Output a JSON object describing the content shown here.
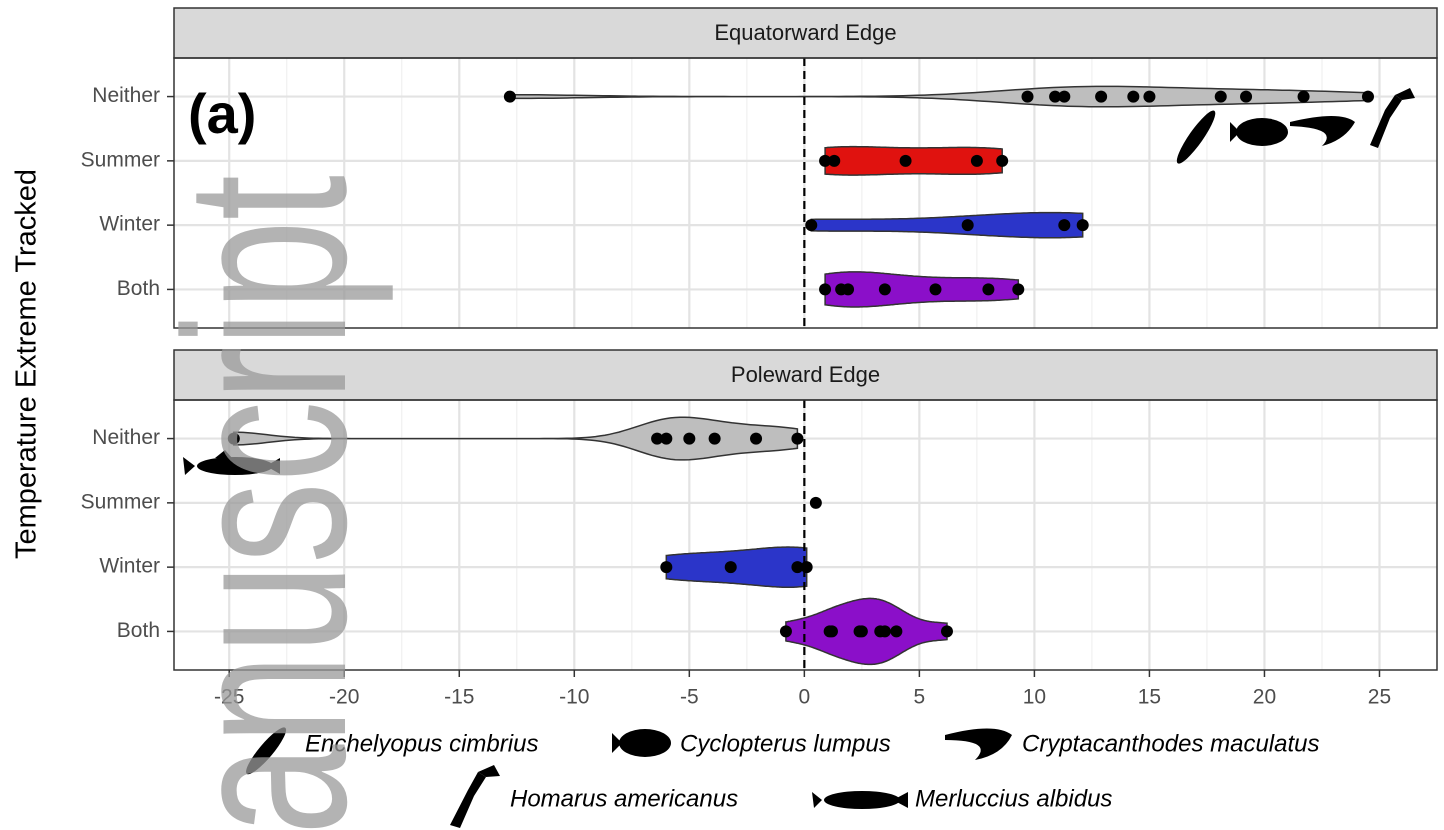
{
  "watermark": "anuscript",
  "panel_label": "(a)",
  "y_label": "Temperature Extreme Tracked",
  "legend": [
    "Enchelyopus cimbrius",
    "Cyclopterus lumpus",
    "Cryptacanthodes maculatus",
    "Homarus americanus",
    "Merluccius albidus"
  ],
  "chart_data": [
    {
      "type": "violin",
      "title": "Equatorward Edge",
      "categories": [
        "Neither",
        "Summer",
        "Winter",
        "Both"
      ],
      "colors": [
        "#bebebe",
        "#e0120f",
        "#2b35c9",
        "#8b0fc9"
      ],
      "values": [
        [
          -12.8,
          9.7,
          10.9,
          11.3,
          12.9,
          14.3,
          15.0,
          18.1,
          19.2,
          21.7,
          24.5
        ],
        [
          0.9,
          1.3,
          4.4,
          7.5,
          8.6
        ],
        [
          0.3,
          7.1,
          11.3,
          12.1
        ],
        [
          0.9,
          1.6,
          1.9,
          3.5,
          5.7,
          8.0,
          9.3
        ]
      ],
      "xlim": [
        -27.4,
        27.5
      ],
      "xticks": [
        -25,
        -20,
        -15,
        -10,
        -5,
        0,
        5,
        10,
        15,
        20,
        25
      ],
      "vline": 0,
      "grid": true
    },
    {
      "type": "violin",
      "title": "Poleward Edge",
      "categories": [
        "Neither",
        "Summer",
        "Winter",
        "Both"
      ],
      "colors": [
        "#bebebe",
        "#e0120f",
        "#2b35c9",
        "#8b0fc9"
      ],
      "values": [
        [
          -24.8,
          -6.4,
          -6.0,
          -5.0,
          -3.9,
          -2.1,
          -0.3
        ],
        [
          0.5
        ],
        [
          -6.0,
          -3.2,
          -0.3,
          0.1
        ],
        [
          -0.8,
          1.1,
          1.2,
          2.4,
          2.5,
          3.3,
          3.5,
          4.0,
          6.2
        ]
      ],
      "xlim": [
        -27.4,
        27.5
      ],
      "xticks": [
        -25,
        -20,
        -15,
        -10,
        -5,
        0,
        5,
        10,
        15,
        20,
        25
      ],
      "vline": 0,
      "grid": true
    }
  ]
}
